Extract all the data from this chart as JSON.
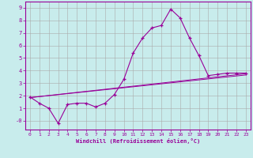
{
  "xlabel": "Windchill (Refroidissement éolien,°C)",
  "background_color": "#c8ecec",
  "line_color": "#990099",
  "grid_color": "#aaaaaa",
  "xlim": [
    -0.5,
    23.5
  ],
  "ylim": [
    -0.7,
    9.5
  ],
  "xticks": [
    0,
    1,
    2,
    3,
    4,
    5,
    6,
    7,
    8,
    9,
    10,
    11,
    12,
    13,
    14,
    15,
    16,
    17,
    18,
    19,
    20,
    21,
    22,
    23
  ],
  "yticks": [
    0,
    1,
    2,
    3,
    4,
    5,
    6,
    7,
    8,
    9
  ],
  "ytick_labels": [
    "-0",
    "1",
    "2",
    "3",
    "4",
    "5",
    "6",
    "7",
    "8",
    "9"
  ],
  "line1_x": [
    0,
    1,
    2,
    3,
    4,
    5,
    6,
    7,
    8,
    9,
    10,
    11,
    12,
    13,
    14,
    15,
    16,
    17,
    18,
    19,
    20,
    21,
    22,
    23
  ],
  "line1_y": [
    1.9,
    1.4,
    1.0,
    -0.2,
    1.3,
    1.4,
    1.4,
    1.1,
    1.4,
    2.1,
    3.3,
    5.4,
    6.6,
    7.4,
    7.6,
    8.9,
    8.2,
    6.6,
    5.2,
    3.6,
    3.7,
    3.8,
    3.8,
    3.8
  ],
  "line2_x": [
    0,
    23
  ],
  "line2_y": [
    1.9,
    3.7
  ],
  "line3_x": [
    0,
    23
  ],
  "line3_y": [
    1.9,
    3.7
  ]
}
